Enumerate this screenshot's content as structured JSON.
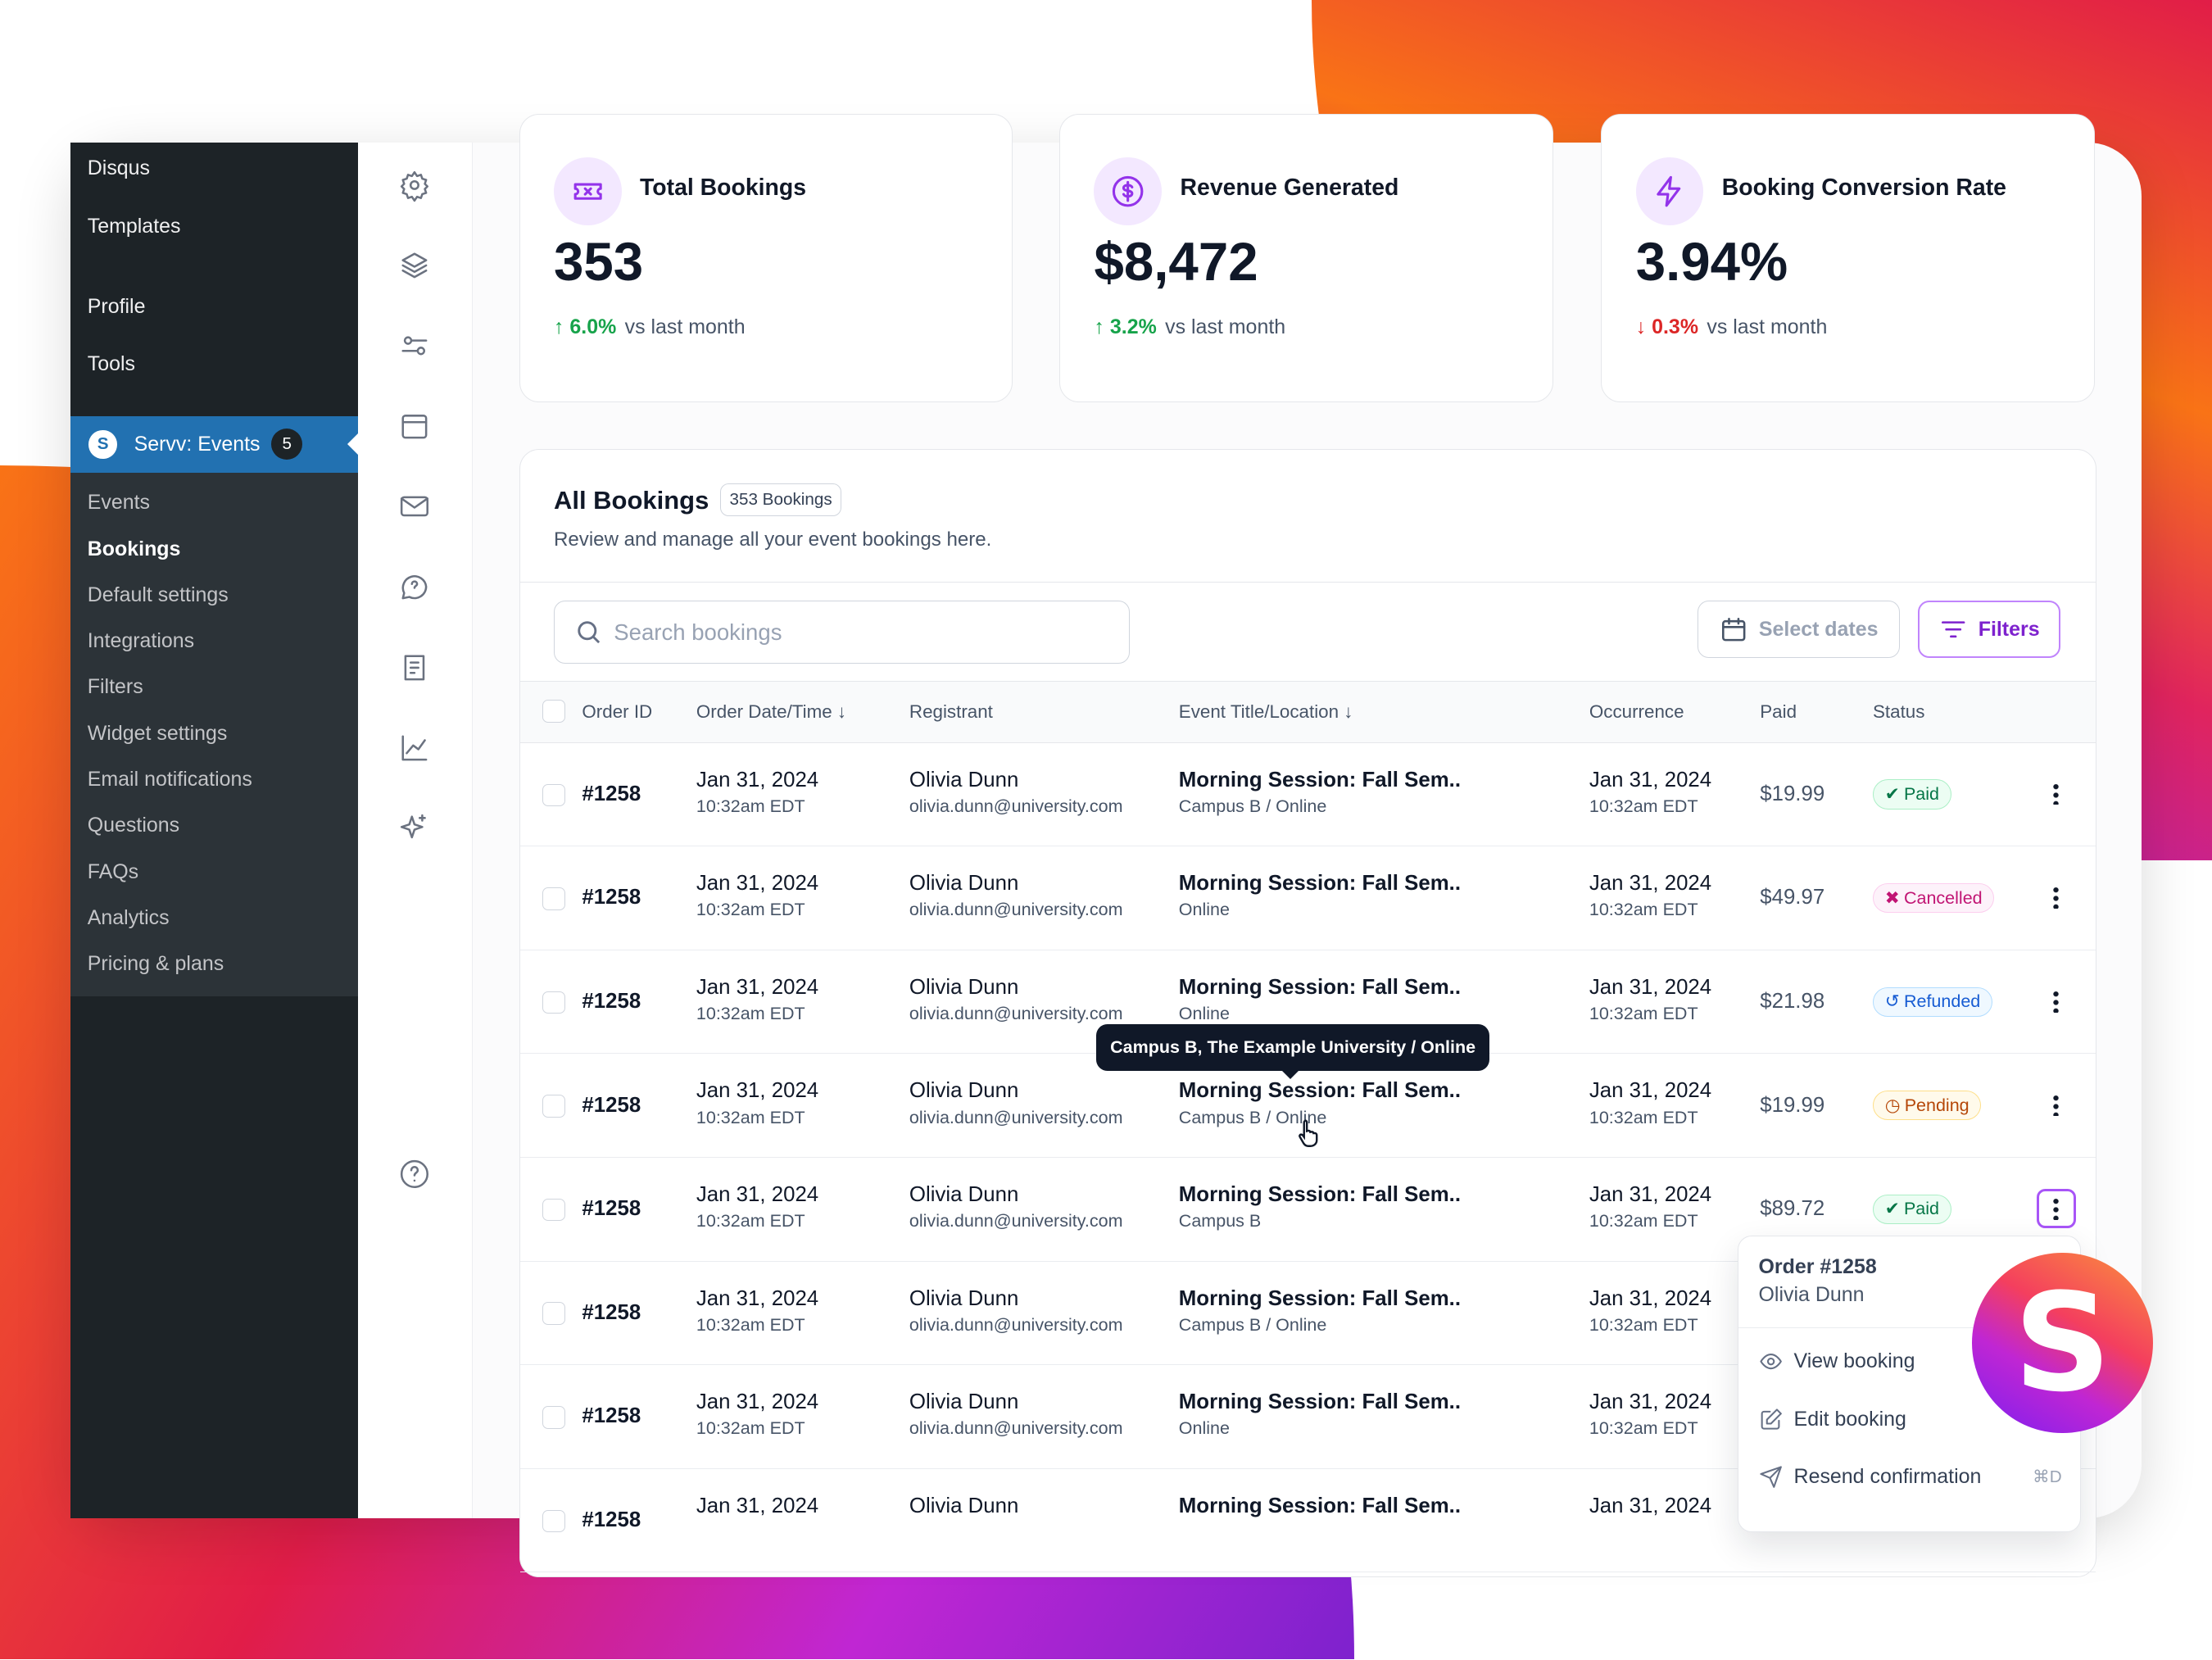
{
  "wp_menu": {
    "top": [
      "Disqus",
      "Templates",
      "Profile",
      "Tools"
    ],
    "active": {
      "label": "Servv: Events",
      "icon_letter": "S",
      "badge": "5"
    },
    "sub": [
      "Events",
      "Bookings",
      "Default settings",
      "Integrations",
      "Filters",
      "Widget settings",
      "Email notifications",
      "Questions",
      "FAQs",
      "Analytics",
      "Pricing & plans"
    ],
    "selected": "Bookings"
  },
  "rail_icons": [
    "gear-icon",
    "layers-icon",
    "sliders-icon",
    "calendar-icon",
    "mail-icon",
    "chat-question-icon",
    "document-icon",
    "chart-line-icon",
    "sparkles-icon",
    "help-circle-icon"
  ],
  "stats": [
    {
      "title": "Total Bookings",
      "value": "353",
      "delta": "6.0%",
      "dir": "up",
      "suffix": "vs last month",
      "icon": "ticket-icon"
    },
    {
      "title": "Revenue Generated",
      "value": "$8,472",
      "delta": "3.2%",
      "dir": "up",
      "suffix": "vs last month",
      "icon": "dollar-circle-icon"
    },
    {
      "title": "Booking Conversion Rate",
      "value": "3.94%",
      "delta": "0.3%",
      "dir": "down",
      "suffix": "vs last month",
      "icon": "lightning-icon"
    }
  ],
  "bookings": {
    "title": "All Bookings",
    "count_badge": "353 Bookings",
    "subtitle": "Review and manage all your event bookings here.",
    "search_placeholder": "Search bookings",
    "select_dates": "Select dates",
    "filters": "Filters",
    "columns": [
      "Order ID",
      "Order Date/Time",
      "Registrant",
      "Event Title/Location",
      "Occurrence",
      "Paid",
      "Status"
    ],
    "rows": [
      {
        "id": "#1258",
        "date": "Jan 31, 2024",
        "time": "10:32am EDT",
        "name": "Olivia Dunn",
        "email": "olivia.dunn@university.com",
        "event": "Morning Session: Fall Sem..",
        "loc": "Campus B / Online",
        "occ": "Jan 31, 2024",
        "occ_time": "10:32am EDT",
        "paid": "$19.99",
        "status": "Paid"
      },
      {
        "id": "#1258",
        "date": "Jan 31, 2024",
        "time": "10:32am EDT",
        "name": "Olivia Dunn",
        "email": "olivia.dunn@university.com",
        "event": "Morning Session: Fall Sem..",
        "loc": "Online",
        "occ": "Jan 31, 2024",
        "occ_time": "10:32am EDT",
        "paid": "$49.97",
        "status": "Cancelled"
      },
      {
        "id": "#1258",
        "date": "Jan 31, 2024",
        "time": "10:32am EDT",
        "name": "Olivia Dunn",
        "email": "olivia.dunn@university.com",
        "event": "Morning Session: Fall Sem..",
        "loc": "Online",
        "occ": "Jan 31, 2024",
        "occ_time": "10:32am EDT",
        "paid": "$21.98",
        "status": "Refunded"
      },
      {
        "id": "#1258",
        "date": "Jan 31, 2024",
        "time": "10:32am EDT",
        "name": "Olivia Dunn",
        "email": "olivia.dunn@university.com",
        "event": "Morning Session: Fall Sem..",
        "loc": "Campus B / Online",
        "occ": "Jan 31, 2024",
        "occ_time": "10:32am EDT",
        "paid": "$19.99",
        "status": "Pending"
      },
      {
        "id": "#1258",
        "date": "Jan 31, 2024",
        "time": "10:32am EDT",
        "name": "Olivia Dunn",
        "email": "olivia.dunn@university.com",
        "event": "Morning Session: Fall Sem..",
        "loc": "Campus B",
        "occ": "Jan 31, 2024",
        "occ_time": "10:32am EDT",
        "paid": "$89.72",
        "status": "Paid"
      },
      {
        "id": "#1258",
        "date": "Jan 31, 2024",
        "time": "10:32am EDT",
        "name": "Olivia Dunn",
        "email": "olivia.dunn@university.com",
        "event": "Morning Session: Fall Sem..",
        "loc": "Campus B / Online",
        "occ": "Jan 31, 2024",
        "occ_time": "10:32am EDT",
        "paid": "",
        "status": ""
      },
      {
        "id": "#1258",
        "date": "Jan 31, 2024",
        "time": "10:32am EDT",
        "name": "Olivia Dunn",
        "email": "olivia.dunn@university.com",
        "event": "Morning Session: Fall Sem..",
        "loc": "Online",
        "occ": "Jan 31, 2024",
        "occ_time": "10:32am EDT",
        "paid": "",
        "status": ""
      },
      {
        "id": "#1258",
        "date": "Jan 31, 2024",
        "time": "",
        "name": "Olivia Dunn",
        "email": "",
        "event": "Morning Session: Fall Sem..",
        "loc": "",
        "occ": "Jan 31, 2024",
        "occ_time": "",
        "paid": "",
        "status": ""
      }
    ]
  },
  "tooltip": "Campus B, The Example University / Online",
  "context_menu": {
    "title": "Order #1258",
    "subtitle": "Olivia Dunn",
    "items": [
      {
        "label": "View booking",
        "icon": "eye-icon"
      },
      {
        "label": "Edit booking",
        "icon": "edit-icon"
      },
      {
        "label": "Resend confirmation",
        "icon": "send-icon",
        "shortcut": "⌘D"
      }
    ]
  },
  "logo_letter": "S"
}
